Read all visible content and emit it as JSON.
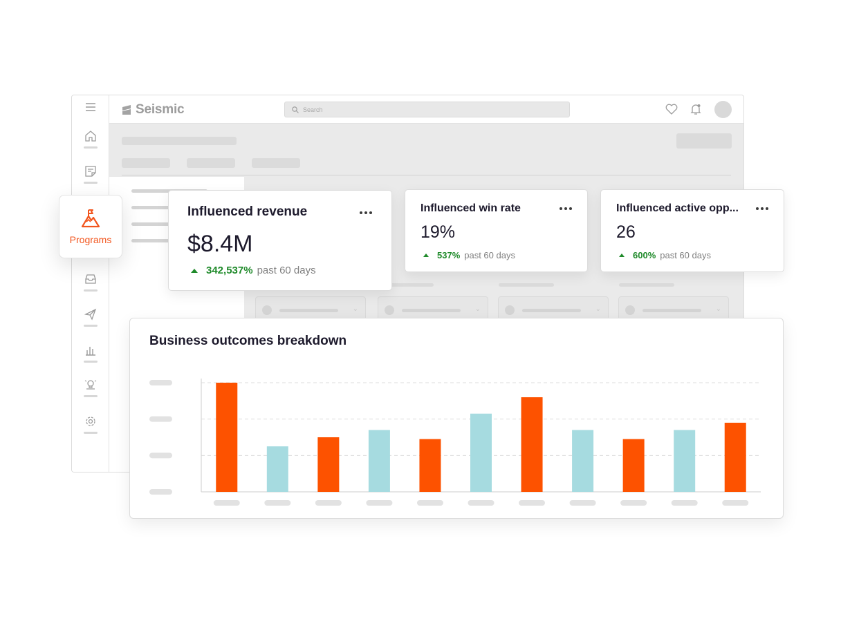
{
  "app": {
    "brand": "Seismic",
    "search_placeholder": "Search"
  },
  "sidebar": {
    "icons": [
      "menu-icon",
      "home-icon",
      "notes-icon",
      "inbox-icon",
      "send-icon",
      "bar-chart-icon",
      "idea-icon",
      "gear-icon"
    ]
  },
  "programs": {
    "label": "Programs",
    "icon": "mountain-flag-icon",
    "accent": "#f2551d"
  },
  "metrics": [
    {
      "title": "Influenced revenue",
      "value": "$8.4M",
      "delta": "342,537%",
      "period": "past 60 days"
    },
    {
      "title": "Influenced win rate",
      "value": "19%",
      "delta": "537%",
      "period": "past 60 days"
    },
    {
      "title": "Influenced active opp...",
      "value": "26",
      "delta": "600%",
      "period": "past 60 days"
    }
  ],
  "colors": {
    "orange": "#fd5200",
    "teal": "#a6dbe0",
    "positive": "#1f8a2a"
  },
  "chart_data": {
    "type": "bar",
    "title": "Business outcomes breakdown",
    "categories": [
      "",
      "",
      "",
      "",
      "",
      "",
      "",
      "",
      "",
      "",
      ""
    ],
    "values": [
      3.0,
      1.25,
      1.5,
      1.7,
      1.45,
      2.15,
      2.6,
      1.7,
      1.45,
      1.7,
      1.9
    ],
    "bar_colors": [
      "orange",
      "teal",
      "orange",
      "teal",
      "orange",
      "teal",
      "orange",
      "teal",
      "orange",
      "teal",
      "orange"
    ],
    "ylim": [
      0,
      3
    ],
    "grid": true,
    "xlabel": "",
    "ylabel": ""
  }
}
